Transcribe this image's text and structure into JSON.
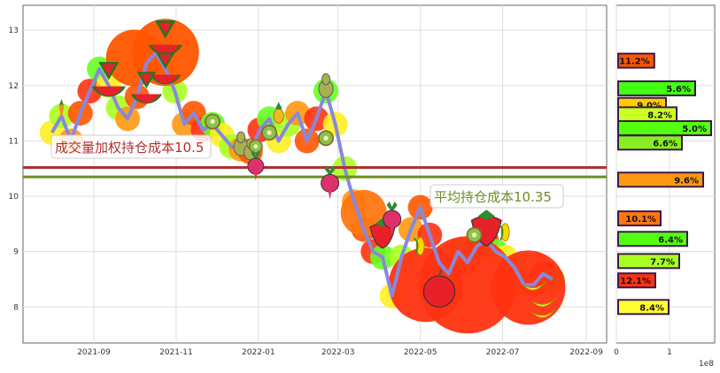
{
  "chart_data": [
    {
      "type": "line",
      "x_tick_labels": [
        "2021-09",
        "2021-11",
        "2022-01",
        "2022-03",
        "2022-05",
        "2022-07",
        "2022-09"
      ],
      "y_tick_labels": [
        "8",
        "9",
        "10",
        "11",
        "12",
        "13"
      ],
      "ylim": [
        7.35,
        13.45
      ],
      "grid": true,
      "series": [
        {
          "values": [
            [
              "2021-08-01",
              11.15
            ],
            [
              "2021-08-08",
              11.45
            ],
            [
              "2021-08-15",
              11.0
            ],
            [
              "2021-08-22",
              11.5
            ],
            [
              "2021-08-29",
              11.9
            ],
            [
              "2021-09-05",
              12.3
            ],
            [
              "2021-09-12",
              12.0
            ],
            [
              "2021-09-19",
              11.6
            ],
            [
              "2021-09-26",
              11.4
            ],
            [
              "2021-10-03",
              11.8
            ],
            [
              "2021-10-10",
              12.4
            ],
            [
              "2021-10-17",
              12.6
            ],
            [
              "2021-10-24",
              12.3
            ],
            [
              "2021-10-31",
              11.9
            ],
            [
              "2021-11-07",
              11.3
            ],
            [
              "2021-11-14",
              11.5
            ],
            [
              "2021-11-21",
              11.2
            ],
            [
              "2021-11-28",
              11.3
            ],
            [
              "2021-12-05",
              11.1
            ],
            [
              "2021-12-12",
              10.9
            ],
            [
              "2021-12-19",
              10.85
            ],
            [
              "2021-12-26",
              10.8
            ],
            [
              "2022-01-02",
              11.2
            ],
            [
              "2022-01-09",
              11.4
            ],
            [
              "2022-01-16",
              11.0
            ],
            [
              "2022-01-23",
              11.3
            ],
            [
              "2022-01-30",
              11.5
            ],
            [
              "2022-02-06",
              11.0
            ],
            [
              "2022-02-13",
              11.4
            ],
            [
              "2022-02-20",
              11.9
            ],
            [
              "2022-02-27",
              11.3
            ],
            [
              "2022-03-06",
              10.5
            ],
            [
              "2022-03-13",
              9.9
            ],
            [
              "2022-03-20",
              9.4
            ],
            [
              "2022-03-27",
              9.0
            ],
            [
              "2022-04-03",
              8.9
            ],
            [
              "2022-04-10",
              8.2
            ],
            [
              "2022-04-17",
              8.9
            ],
            [
              "2022-04-24",
              9.4
            ],
            [
              "2022-05-01",
              9.8
            ],
            [
              "2022-05-08",
              9.3
            ],
            [
              "2022-05-15",
              8.8
            ],
            [
              "2022-05-22",
              8.6
            ],
            [
              "2022-05-29",
              9.0
            ],
            [
              "2022-06-05",
              8.8
            ],
            [
              "2022-06-12",
              9.1
            ],
            [
              "2022-06-19",
              9.2
            ],
            [
              "2022-06-26",
              9.0
            ],
            [
              "2022-07-03",
              8.9
            ],
            [
              "2022-07-10",
              8.7
            ],
            [
              "2022-07-17",
              8.4
            ],
            [
              "2022-07-24",
              8.4
            ],
            [
              "2022-07-31",
              8.6
            ],
            [
              "2022-08-07",
              8.5
            ]
          ],
          "color": "#8888dd"
        }
      ],
      "hlines": [
        {
          "value": 10.52,
          "color": "#b03030",
          "label": "成交量加权持仓成本10.52",
          "text_shown": "成交量加权持仓成本10.5"
        },
        {
          "value": 10.35,
          "color": "#6b8e23",
          "label": "平均持仓成本10.35"
        }
      ]
    },
    {
      "type": "bar",
      "orientation": "horizontal",
      "x_tick_labels": [
        "0",
        "1"
      ],
      "x_offset_label": "1e8",
      "bars": [
        {
          "price": 12.45,
          "value": 0.68,
          "label": "11.2%",
          "color": "#ff5500"
        },
        {
          "price": 11.95,
          "value": 1.45,
          "label": "5.6%",
          "color": "#44ff11"
        },
        {
          "price": 11.65,
          "value": 0.9,
          "label": "9.0%",
          "color": "#ffcc00"
        },
        {
          "price": 11.48,
          "value": 1.1,
          "label": "8.2%",
          "color": "#ccff22"
        },
        {
          "price": 11.23,
          "value": 1.75,
          "label": "5.0%",
          "color": "#55ff11"
        },
        {
          "price": 10.97,
          "value": 1.2,
          "label": "6.6%",
          "color": "#88ee22"
        },
        {
          "price": 10.3,
          "value": 1.6,
          "label": "9.6%",
          "color": "#ff9911"
        },
        {
          "price": 9.6,
          "value": 0.8,
          "label": "10.1%",
          "color": "#ff7711"
        },
        {
          "price": 9.23,
          "value": 1.3,
          "label": "6.4%",
          "color": "#55ff11"
        },
        {
          "price": 8.83,
          "value": 1.15,
          "label": "7.7%",
          "color": "#aaff22"
        },
        {
          "price": 8.48,
          "value": 0.7,
          "label": "12.1%",
          "color": "#ff3311"
        },
        {
          "price": 8.0,
          "value": 0.95,
          "label": "8.4%",
          "color": "#ffff33"
        }
      ]
    }
  ],
  "icons": [
    "carrot-icon",
    "watermelon-icon",
    "pear-icon",
    "kiwi-icon",
    "radish-icon",
    "pineapple-icon",
    "strawberry-icon",
    "corn-icon",
    "apple-icon",
    "banana-icon"
  ],
  "colors": {
    "vwap": "#b03030",
    "avg": "#6b8e23",
    "line": "#8888dd",
    "grid": "#dddddd",
    "axis": "#666666"
  }
}
